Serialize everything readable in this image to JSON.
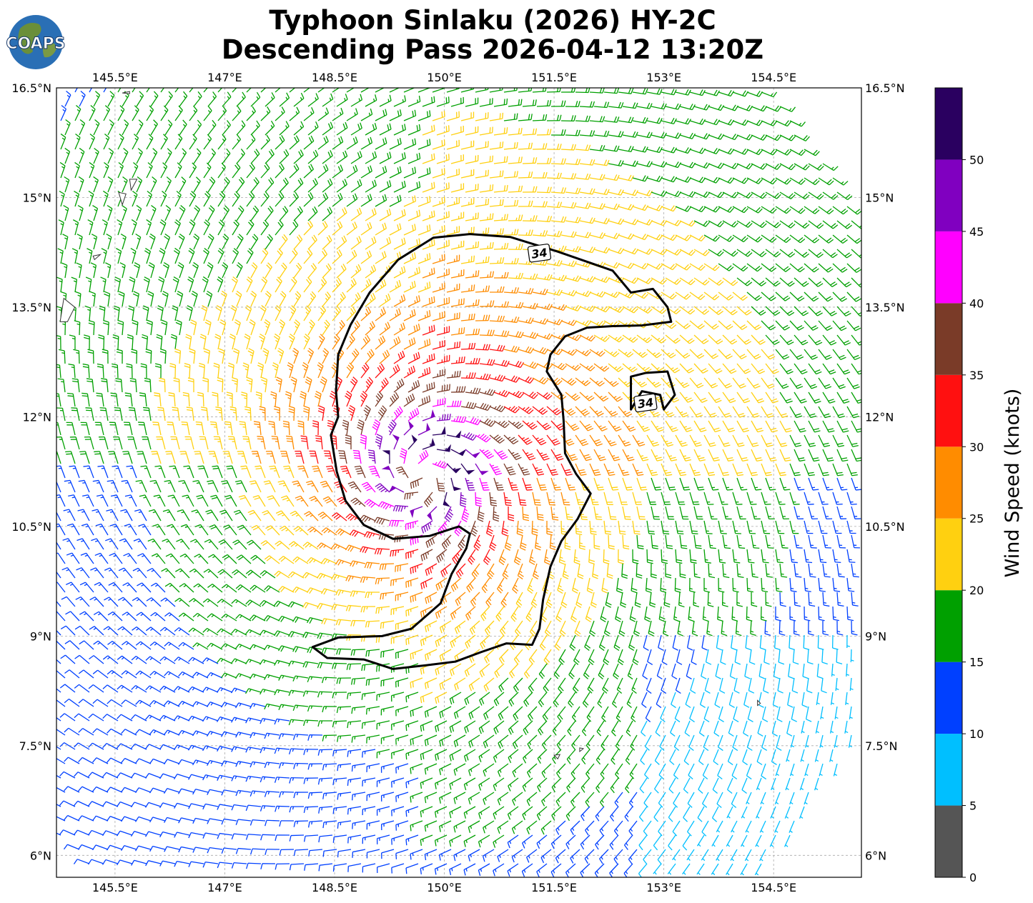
{
  "title": {
    "line1": "Typhoon Sinlaku (2026) HY-2C",
    "line2": "Descending Pass 2026-04-12 13:20Z"
  },
  "logo": {
    "text": "COAPS",
    "icon": "globe-logo-icon"
  },
  "map": {
    "extent": {
      "lon_min": 144.7,
      "lon_max": 155.7,
      "lat_min": 5.7,
      "lat_max": 16.5
    },
    "lon_ticks": [
      {
        "value": 145.5,
        "label": "145.5°E"
      },
      {
        "value": 147.0,
        "label": "147°E"
      },
      {
        "value": 148.5,
        "label": "148.5°E"
      },
      {
        "value": 150.0,
        "label": "150°E"
      },
      {
        "value": 151.5,
        "label": "151.5°E"
      },
      {
        "value": 153.0,
        "label": "153°E"
      },
      {
        "value": 154.5,
        "label": "154.5°E"
      }
    ],
    "lat_ticks": [
      {
        "value": 16.5,
        "label": "16.5°N"
      },
      {
        "value": 15.0,
        "label": "15°N"
      },
      {
        "value": 13.5,
        "label": "13.5°N"
      },
      {
        "value": 12.0,
        "label": "12°N"
      },
      {
        "value": 10.5,
        "label": "10.5°N"
      },
      {
        "value": 9.0,
        "label": "9°N"
      },
      {
        "value": 7.5,
        "label": "7.5°N"
      },
      {
        "value": 6.0,
        "label": "6°N"
      }
    ],
    "gridlines": true,
    "storm_center": {
      "lon": 149.7,
      "lat": 11.2
    },
    "wind_radii": {
      "outer_lon": 6.2,
      "outer_lat": 6.9
    },
    "contour_labels": [
      {
        "text": "34",
        "lon": 151.3,
        "lat": 14.23
      },
      {
        "text": "34",
        "lon": 152.75,
        "lat": 12.18
      }
    ],
    "contour_34kt": [
      [
        148.72,
        13.26
      ],
      [
        148.98,
        13.7
      ],
      [
        149.37,
        14.15
      ],
      [
        149.85,
        14.45
      ],
      [
        150.35,
        14.5
      ],
      [
        150.9,
        14.46
      ],
      [
        151.55,
        14.26
      ],
      [
        152.3,
        14.0
      ],
      [
        152.55,
        13.7
      ],
      [
        152.85,
        13.75
      ],
      [
        153.05,
        13.5
      ],
      [
        153.1,
        13.3
      ],
      [
        152.7,
        13.25
      ],
      [
        152.3,
        13.24
      ],
      [
        151.95,
        13.22
      ],
      [
        151.65,
        13.1
      ],
      [
        151.45,
        12.85
      ],
      [
        151.4,
        12.62
      ],
      [
        151.6,
        12.3
      ],
      [
        151.63,
        11.95
      ],
      [
        151.65,
        11.5
      ],
      [
        151.8,
        11.22
      ],
      [
        152.0,
        10.95
      ],
      [
        151.82,
        10.6
      ],
      [
        151.6,
        10.3
      ],
      [
        151.45,
        9.95
      ],
      [
        151.35,
        9.5
      ],
      [
        151.3,
        9.1
      ],
      [
        151.2,
        8.88
      ],
      [
        150.85,
        8.9
      ],
      [
        150.5,
        8.78
      ],
      [
        150.15,
        8.65
      ],
      [
        149.75,
        8.6
      ],
      [
        149.3,
        8.55
      ],
      [
        148.9,
        8.68
      ],
      [
        148.4,
        8.7
      ],
      [
        148.2,
        8.85
      ],
      [
        148.55,
        8.98
      ],
      [
        149.15,
        9.0
      ],
      [
        149.55,
        9.1
      ],
      [
        149.95,
        9.45
      ],
      [
        150.1,
        9.85
      ],
      [
        150.3,
        10.2
      ],
      [
        150.35,
        10.4
      ],
      [
        150.2,
        10.5
      ],
      [
        149.8,
        10.37
      ],
      [
        149.3,
        10.33
      ],
      [
        148.9,
        10.52
      ],
      [
        148.65,
        10.85
      ],
      [
        148.53,
        11.25
      ],
      [
        148.45,
        11.75
      ],
      [
        148.55,
        12.0
      ],
      [
        148.52,
        12.35
      ],
      [
        148.55,
        12.85
      ],
      [
        148.72,
        13.26
      ]
    ],
    "contour_34kt_secondary": [
      [
        152.75,
        12.6
      ],
      [
        153.05,
        12.62
      ],
      [
        153.15,
        12.3
      ],
      [
        153.0,
        12.1
      ],
      [
        152.95,
        12.3
      ],
      [
        152.7,
        12.35
      ],
      [
        152.55,
        12.1
      ],
      [
        152.55,
        12.55
      ],
      [
        152.75,
        12.6
      ]
    ],
    "islands": [
      [
        [
          145.6,
          16.43
        ],
        [
          145.7,
          16.45
        ],
        [
          145.7,
          16.42
        ],
        [
          145.6,
          16.43
        ]
      ],
      [
        [
          145.7,
          15.25
        ],
        [
          145.8,
          15.25
        ],
        [
          145.72,
          15.1
        ],
        [
          145.7,
          15.25
        ]
      ],
      [
        [
          145.55,
          15.07
        ],
        [
          145.65,
          15.05
        ],
        [
          145.6,
          14.9
        ],
        [
          145.55,
          15.07
        ]
      ],
      [
        [
          145.2,
          14.2
        ],
        [
          145.3,
          14.22
        ],
        [
          145.22,
          14.15
        ],
        [
          145.2,
          14.2
        ]
      ],
      [
        [
          144.8,
          13.62
        ],
        [
          144.95,
          13.5
        ],
        [
          144.85,
          13.3
        ],
        [
          144.75,
          13.3
        ],
        [
          144.8,
          13.62
        ]
      ],
      [
        [
          154.28,
          8.12
        ],
        [
          154.32,
          8.08
        ],
        [
          154.28,
          8.05
        ],
        [
          154.28,
          8.12
        ]
      ],
      [
        [
          151.5,
          7.37
        ],
        [
          151.58,
          7.38
        ],
        [
          151.55,
          7.32
        ],
        [
          151.5,
          7.37
        ]
      ],
      [
        [
          151.85,
          7.47
        ],
        [
          151.9,
          7.46
        ],
        [
          151.85,
          7.42
        ],
        [
          151.85,
          7.47
        ]
      ]
    ]
  },
  "colorbar": {
    "label": "Wind Speed (knots)",
    "colors": [
      "#555555",
      "#00bfff",
      "#0040ff",
      "#00a000",
      "#ffd010",
      "#ff8c00",
      "#ff1010",
      "#7a3b28",
      "#ff00ff",
      "#8000c0",
      "#2a0060"
    ],
    "boundaries": [
      0,
      5,
      10,
      15,
      20,
      25,
      30,
      35,
      40,
      45,
      50,
      55
    ],
    "tick_labels": [
      "0",
      "5",
      "10",
      "15",
      "20",
      "25",
      "30",
      "35",
      "40",
      "45",
      "50"
    ]
  }
}
